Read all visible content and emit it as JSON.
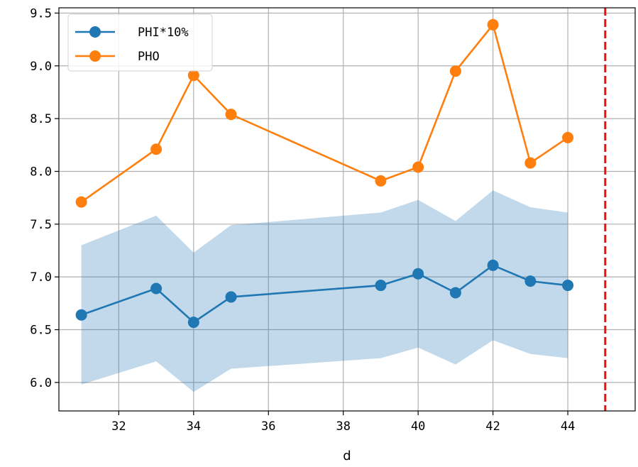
{
  "chart_data": {
    "type": "line",
    "title": "",
    "xlabel": "d",
    "ylabel": "",
    "xlim": [
      30.4,
      45.8
    ],
    "ylim": [
      5.73,
      9.55
    ],
    "x_ticks": [
      32,
      34,
      36,
      38,
      40,
      42,
      44
    ],
    "y_ticks": [
      6.0,
      6.5,
      7.0,
      7.5,
      8.0,
      8.5,
      9.0,
      9.5
    ],
    "x_tick_labels": [
      "32",
      "34",
      "36",
      "38",
      "40",
      "42",
      "44"
    ],
    "y_tick_labels": [
      "6.0",
      "6.5",
      "7.0",
      "7.5",
      "8.0",
      "8.5",
      "9.0",
      "9.5"
    ],
    "grid": true,
    "legend_position": "top-left",
    "x": [
      31,
      33,
      34,
      35,
      39,
      40,
      41,
      42,
      43,
      44
    ],
    "series": [
      {
        "name": "PHI*10%",
        "color": "#1f77b4",
        "values": [
          6.64,
          6.89,
          6.57,
          6.81,
          6.92,
          7.03,
          6.85,
          7.11,
          6.96,
          6.92
        ],
        "band": {
          "color": "#1f77b4",
          "lower": [
            5.98,
            6.2,
            5.91,
            6.13,
            6.23,
            6.33,
            6.17,
            6.4,
            6.27,
            6.23
          ],
          "upper": [
            7.3,
            7.58,
            7.23,
            7.49,
            7.61,
            7.73,
            7.53,
            7.82,
            7.66,
            7.61
          ]
        }
      },
      {
        "name": "PHO",
        "color": "#ff7f0e",
        "values": [
          7.71,
          8.21,
          8.91,
          8.54,
          7.91,
          8.04,
          8.95,
          9.39,
          8.08,
          8.32
        ]
      }
    ],
    "vline": {
      "x": 45,
      "color": "#e8120c",
      "style": "dashed"
    }
  }
}
